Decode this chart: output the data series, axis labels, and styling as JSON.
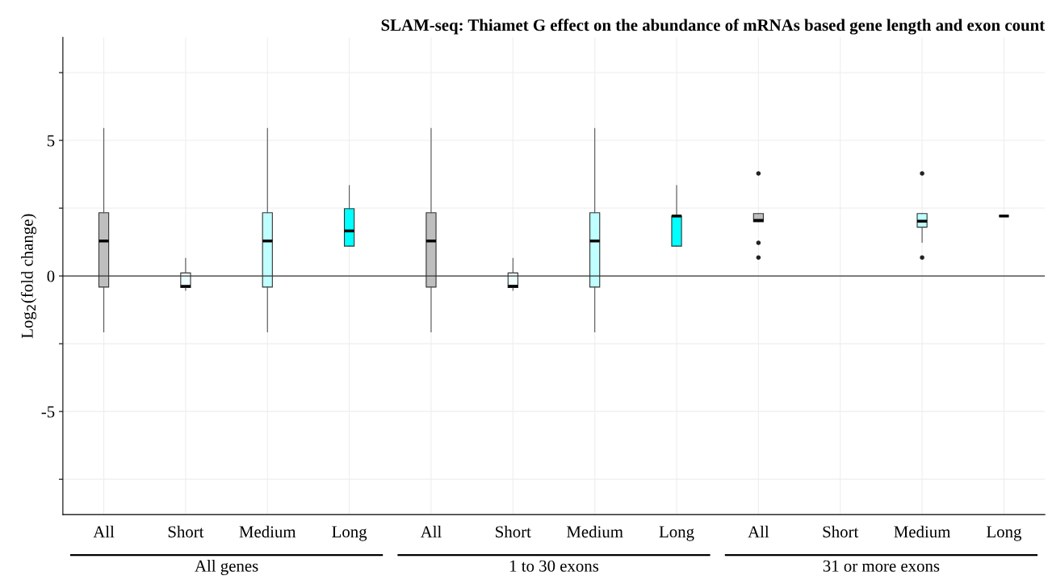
{
  "chart_data": {
    "type": "box",
    "title": "SLAM-seq: Thiamet G effect on the abundance of mRNAs based gene length and exon count",
    "ylabel": "Log$_{2}$(fold change)",
    "categories": [
      "All",
      "Short",
      "Medium",
      "Long",
      "All",
      "Short",
      "Medium",
      "Long",
      "All",
      "Short",
      "Medium",
      "Long"
    ],
    "colors": [
      "#bebebe",
      "#f0ffff",
      "#bfffff",
      "#00ffff",
      "#bebebe",
      "#f0ffff",
      "#bfffff",
      "#00ffff",
      "#bebebe",
      "#f0ffff",
      "#bfffff",
      "#00ffff"
    ],
    "boxes": [
      {
        "low": -2.06,
        "q1": -0.41,
        "median": 1.29,
        "q3": 2.33,
        "high": 5.44
      },
      {
        "low": -0.53,
        "q1": -0.43,
        "median": -0.38,
        "q3": 0.11,
        "high": 0.65
      },
      {
        "low": -2.06,
        "q1": -0.41,
        "median": 1.29,
        "q3": 2.33,
        "high": 5.44
      },
      {
        "low": 1.1,
        "q1": 1.1,
        "median": 1.66,
        "q3": 2.48,
        "high": 3.33
      },
      {
        "low": -2.06,
        "q1": -0.41,
        "median": 1.29,
        "q3": 2.33,
        "high": 5.44
      },
      {
        "low": -0.53,
        "q1": -0.43,
        "median": -0.38,
        "q3": 0.11,
        "high": 0.65
      },
      {
        "low": -2.06,
        "q1": -0.41,
        "median": 1.29,
        "q3": 2.33,
        "high": 5.44
      },
      {
        "low": 1.1,
        "q1": 1.1,
        "median": 2.21,
        "q3": 2.21,
        "high": 3.33
      },
      {
        "low": 2.0,
        "q1": 2.0,
        "median": 2.05,
        "q3": 2.3,
        "high": 2.3,
        "outliers": [
          3.78,
          1.22,
          0.68
        ]
      },
      null,
      {
        "low": 1.24,
        "q1": 1.8,
        "median": 2.02,
        "q3": 2.3,
        "high": 2.3,
        "outliers": [
          3.78,
          0.68
        ]
      },
      {
        "low": 2.21,
        "q1": 2.21,
        "median": 2.21,
        "q3": 2.21,
        "high": 2.21
      }
    ],
    "ylim": [
      -8.8,
      8.8
    ],
    "yticks": [
      {
        "value": -7.5,
        "label": null
      },
      -5,
      {
        "value": -2.5,
        "label": null
      },
      0,
      {
        "value": 2.5,
        "label": null
      },
      5,
      {
        "value": 7.5,
        "label": null
      }
    ],
    "ref_lines": [
      {
        "axis": "y",
        "value": 0,
        "color": "#333333"
      }
    ],
    "grid": true,
    "annotations": [
      "All genes",
      "1 to 30 exons",
      "31 or more exons"
    ]
  }
}
